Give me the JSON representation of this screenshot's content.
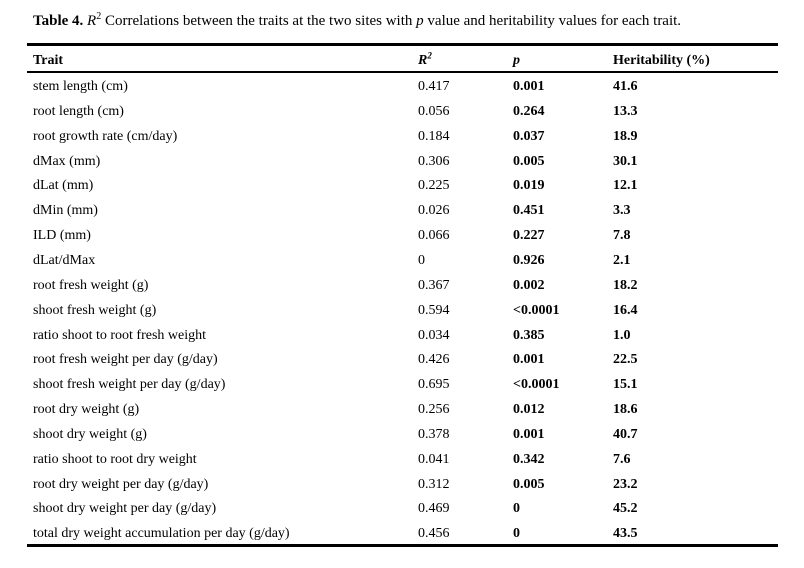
{
  "caption": {
    "label": "Table 4.",
    "r_letter": "R",
    "r_sup": "2",
    "text": " Correlations between the traits at the two sites with ",
    "p_letter": "p",
    "text_end": " value and heritability values for each trait."
  },
  "headers": {
    "trait": "Trait",
    "r2_letter": "R",
    "r2_sup": "2",
    "p": "p",
    "heritability": "Heritability (%)"
  },
  "rows": [
    {
      "trait": "stem length (cm)",
      "r2": "0.417",
      "p": "0.001",
      "h": "41.6"
    },
    {
      "trait": "root length (cm)",
      "r2": "0.056",
      "p": "0.264",
      "h": "13.3"
    },
    {
      "trait": "root growth rate (cm/day)",
      "r2": "0.184",
      "p": "0.037",
      "h": "18.9"
    },
    {
      "trait": "dMax (mm)",
      "r2": "0.306",
      "p": "0.005",
      "h": "30.1"
    },
    {
      "trait": "dLat (mm)",
      "r2": "0.225",
      "p": "0.019",
      "h": "12.1"
    },
    {
      "trait": "dMin (mm)",
      "r2": "0.026",
      "p": "0.451",
      "h": "3.3"
    },
    {
      "trait": "ILD (mm)",
      "r2": "0.066",
      "p": "0.227",
      "h": "7.8"
    },
    {
      "trait": "dLat/dMax",
      "r2": "0",
      "p": "0.926",
      "h": "2.1"
    },
    {
      "trait": "root fresh weight (g)",
      "r2": "0.367",
      "p": "0.002",
      "h": "18.2"
    },
    {
      "trait": "shoot fresh weight (g)",
      "r2": "0.594",
      "p": "<0.0001",
      "h": "16.4"
    },
    {
      "trait": "ratio shoot to root fresh weight",
      "r2": "0.034",
      "p": "0.385",
      "h": "1.0"
    },
    {
      "trait": "root fresh weight per day (g/day)",
      "r2": "0.426",
      "p": "0.001",
      "h": "22.5"
    },
    {
      "trait": "shoot fresh weight per day (g/day)",
      "r2": "0.695",
      "p": "<0.0001",
      "h": "15.1"
    },
    {
      "trait": "root dry weight (g)",
      "r2": "0.256",
      "p": "0.012",
      "h": "18.6"
    },
    {
      "trait": "shoot dry weight (g)",
      "r2": "0.378",
      "p": "0.001",
      "h": "40.7"
    },
    {
      "trait": "ratio shoot to root dry weight",
      "r2": "0.041",
      "p": "0.342",
      "h": "7.6"
    },
    {
      "trait": "root dry weight per day (g/day)",
      "r2": "0.312",
      "p": "0.005",
      "h": "23.2"
    },
    {
      "trait": "shoot dry weight per day (g/day)",
      "r2": "0.469",
      "p": "0",
      "h": "45.2"
    },
    {
      "trait": "total dry weight accumulation per day (g/day)",
      "r2": "0.456",
      "p": "0",
      "h": "43.5"
    }
  ]
}
